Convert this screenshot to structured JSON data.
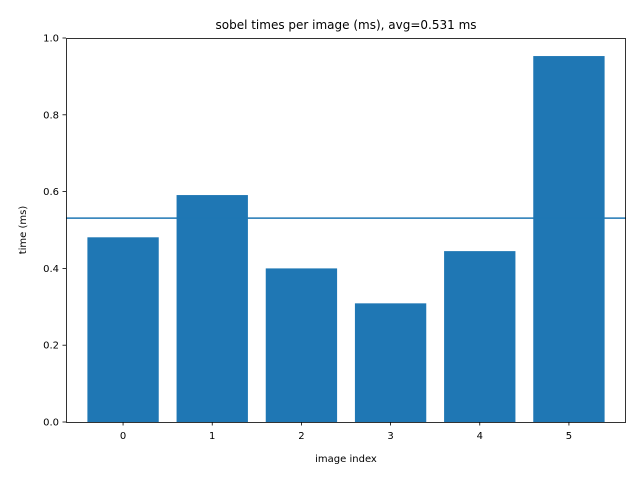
{
  "chart_data": {
    "type": "bar",
    "title": "sobel times per image (ms), avg=0.531 ms",
    "xlabel": "image index",
    "ylabel": "time (ms)",
    "categories": [
      "0",
      "1",
      "2",
      "3",
      "4",
      "5"
    ],
    "values": [
      0.481,
      0.591,
      0.4,
      0.309,
      0.445,
      0.953
    ],
    "ylim": [
      0,
      1.0
    ],
    "yticks": [
      "0.0",
      "0.2",
      "0.4",
      "0.6",
      "0.8",
      "1.0"
    ],
    "average_line": 0.531,
    "grid": false,
    "bar_color": "#1f77b4",
    "line_color": "#1f77b4"
  }
}
